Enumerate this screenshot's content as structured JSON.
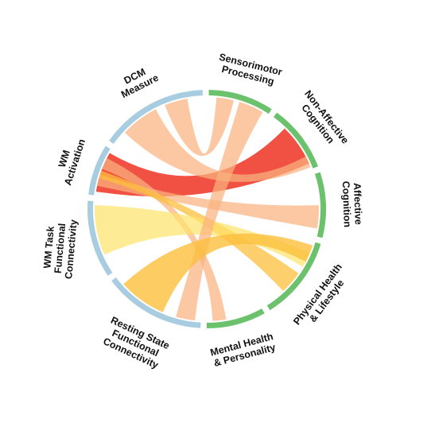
{
  "colors": {
    "neural_arc": "#a9cde0",
    "behavioral_arc": "#6cc26c",
    "ribbon_red": "#ee3322",
    "ribbon_orange": "#fab380",
    "ribbon_yellow": "#fde26a",
    "ribbon_gold": "#fcbf3c"
  },
  "segments": [
    {
      "id": "dcm",
      "label": [
        "DCM",
        "Measure"
      ],
      "group": "neural"
    },
    {
      "id": "sensorimotor",
      "label": [
        "Sensorimotor",
        "Processing"
      ],
      "group": "behavioral"
    },
    {
      "id": "nonaffective",
      "label": [
        "Non-Affective",
        "Cognition"
      ],
      "group": "behavioral"
    },
    {
      "id": "affective",
      "label": [
        "Affective",
        "Cognition"
      ],
      "group": "behavioral"
    },
    {
      "id": "physical",
      "label": [
        "Physical Health",
        "& Lifestyle"
      ],
      "group": "behavioral"
    },
    {
      "id": "mental",
      "label": [
        "Mental Health",
        "& Personality"
      ],
      "group": "behavioral"
    },
    {
      "id": "resting",
      "label": [
        "Resting State",
        "Functional",
        "Connectivity"
      ],
      "group": "neural"
    },
    {
      "id": "wmtask",
      "label": [
        "WM Task",
        "Functional",
        "Connectivity"
      ],
      "group": "neural"
    },
    {
      "id": "wmact",
      "label": [
        "WM",
        "Activation"
      ],
      "group": "neural"
    }
  ],
  "ribbons": [
    {
      "from": "wmact",
      "to": "nonaffective",
      "color": "ribbon_red"
    },
    {
      "from": "wmact",
      "to": "affective",
      "color": "ribbon_orange"
    },
    {
      "from": "wmact",
      "to": "mental",
      "color": "ribbon_orange"
    },
    {
      "from": "wmact",
      "to": "physical",
      "color": "ribbon_gold"
    },
    {
      "from": "dcm",
      "to": "nonaffective",
      "color": "ribbon_orange"
    },
    {
      "from": "dcm",
      "to": "sensorimotor",
      "color": "ribbon_orange"
    },
    {
      "from": "wmtask",
      "to": "physical",
      "color": "ribbon_yellow"
    },
    {
      "from": "resting",
      "to": "sensorimotor",
      "color": "ribbon_orange"
    },
    {
      "from": "resting",
      "to": "physical",
      "color": "ribbon_gold"
    }
  ]
}
